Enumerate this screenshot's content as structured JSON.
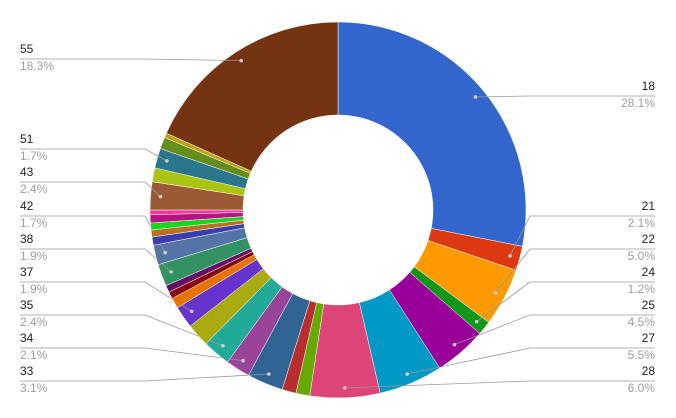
{
  "chart_data": {
    "type": "donut",
    "categories": [
      "18",
      "21",
      "22",
      "24",
      "25",
      "27",
      "28",
      null,
      null,
      "33",
      "34",
      "35",
      null,
      "37",
      null,
      null,
      null,
      "38",
      "42",
      null,
      null,
      null,
      null,
      null,
      "43",
      null,
      "51",
      null,
      null,
      "55"
    ],
    "values": [
      28.1,
      2.1,
      5.0,
      1.2,
      4.5,
      5.5,
      6.0,
      1.2,
      1.2,
      3.1,
      2.1,
      2.4,
      2.0,
      1.9,
      0.9,
      0.6,
      0.6,
      1.9,
      1.7,
      0.7,
      0.6,
      0.6,
      0.7,
      0.4,
      2.4,
      1.2,
      1.7,
      1.0,
      0.4,
      18.3
    ],
    "value_labels": [
      "28.1%",
      "2.1%",
      "5.0%",
      "1.2%",
      "4.5%",
      "5.5%",
      "6.0%",
      null,
      null,
      "3.1%",
      "2.1%",
      "2.4%",
      null,
      "1.9%",
      null,
      null,
      null,
      "1.9%",
      "1.7%",
      null,
      null,
      null,
      null,
      null,
      "2.4%",
      null,
      "1.7%",
      null,
      null,
      "18.3%"
    ],
    "colors": [
      "#3366cc",
      "#dc3912",
      "#ff9900",
      "#109618",
      "#990099",
      "#0099c6",
      "#dd4477",
      "#66aa00",
      "#b82e2e",
      "#316395",
      "#994499",
      "#22aa99",
      "#aaaa11",
      "#6633cc",
      "#e67300",
      "#8b0707",
      "#651067",
      "#329262",
      "#5574a6",
      "#3b3eac",
      "#b77322",
      "#16d620",
      "#b91383",
      "#f4359e",
      "#9c5935",
      "#a9c413",
      "#2a778d",
      "#668d1c",
      "#bea413",
      "#743411"
    ]
  }
}
